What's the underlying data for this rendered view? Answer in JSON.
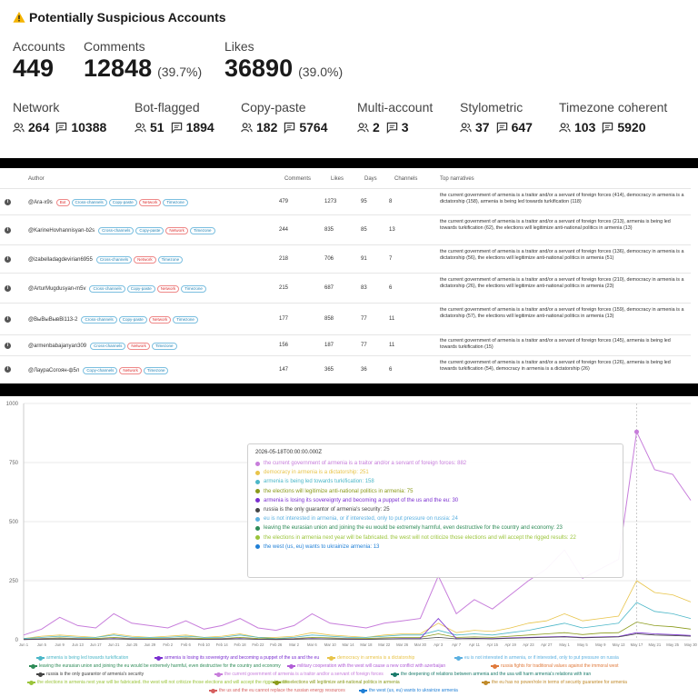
{
  "summary": {
    "title": "Potentially Suspicious Accounts",
    "accounts_label": "Accounts",
    "accounts_value": "449",
    "comments_label": "Comments",
    "comments_value": "12848",
    "comments_pct": "(39.7%)",
    "likes_label": "Likes",
    "likes_value": "36890",
    "likes_pct": "(39.0%)",
    "categories": [
      {
        "label": "Network",
        "accounts": "264",
        "comments": "10388"
      },
      {
        "label": "Bot-flagged",
        "accounts": "51",
        "comments": "1894"
      },
      {
        "label": "Copy-paste",
        "accounts": "182",
        "comments": "5764"
      },
      {
        "label": "Multi-account",
        "accounts": "2",
        "comments": "3"
      },
      {
        "label": "Stylometric",
        "accounts": "37",
        "comments": "647"
      },
      {
        "label": "Timezone coherent",
        "accounts": "103",
        "comments": "5920"
      }
    ],
    "colors": {
      "accent": "#1a1a1a",
      "warning": "#f5b400"
    }
  },
  "table": {
    "headers": {
      "author": "Author",
      "comments": "Comments",
      "likes": "Likes",
      "days": "Days",
      "channels": "Channels",
      "narratives": "Top narratives"
    },
    "rows": [
      {
        "author": "@Ara-x9s",
        "tags": [
          {
            "t": "Bot",
            "c": "red"
          },
          {
            "t": "Cross-channels",
            "c": "blue"
          },
          {
            "t": "Copy-paste",
            "c": "blue"
          },
          {
            "t": "Network",
            "c": "red"
          },
          {
            "t": "Timezone",
            "c": "blue"
          }
        ],
        "comments": "479",
        "likes": "1273",
        "days": "95",
        "channels": "8",
        "narratives": "the current government of armenia is a traitor and/or a servant of foreign forces (414), democracy in armenia is a dictatorship (158), armenia is being led towards turkification (118)"
      },
      {
        "author": "@KarineHovhannisyan-b2s",
        "tags": [
          {
            "t": "Cross-channels",
            "c": "blue"
          },
          {
            "t": "Copy-paste",
            "c": "blue"
          },
          {
            "t": "Network",
            "c": "red"
          },
          {
            "t": "Timezone",
            "c": "blue"
          }
        ],
        "comments": "244",
        "likes": "835",
        "days": "85",
        "channels": "13",
        "narratives": "the current government of armenia is a traitor and/or a servant of foreign forces (213), armenia is being led towards turkification (62), the elections will legitimize anti-national politics in armenia (13)"
      },
      {
        "author": "@izabelladagdevirian6955",
        "tags": [
          {
            "t": "Cross-channels",
            "c": "blue"
          },
          {
            "t": "Network",
            "c": "red"
          },
          {
            "t": "Timezone",
            "c": "blue"
          }
        ],
        "comments": "218",
        "likes": "706",
        "days": "91",
        "channels": "7",
        "narratives": "the current government of armenia is a traitor and/or a servant of foreign forces (136), democracy in armenia is a dictatorship (56), the elections will legitimize anti-national politics in armenia (51)"
      },
      {
        "author": "@ArturMugdusyan-m5v",
        "tags": [
          {
            "t": "Cross-channels",
            "c": "blue"
          },
          {
            "t": "Copy-paste",
            "c": "blue"
          },
          {
            "t": "Network",
            "c": "red"
          },
          {
            "t": "Timezone",
            "c": "blue"
          }
        ],
        "comments": "215",
        "likes": "687",
        "days": "83",
        "channels": "6",
        "narratives": "the current government of armenia is a traitor and/or a servant of foreign forces (210), democracy in armenia is a dictatorship (26), the elections will legitimize anti-national politics in armenia (23)"
      },
      {
        "author": "@ВыВыВывВі113-2",
        "tags": [
          {
            "t": "Cross-channels",
            "c": "blue"
          },
          {
            "t": "Copy-paste",
            "c": "blue"
          },
          {
            "t": "Network",
            "c": "red"
          },
          {
            "t": "Timezone",
            "c": "blue"
          }
        ],
        "comments": "177",
        "likes": "858",
        "days": "77",
        "channels": "11",
        "narratives": "the current government of armenia is a traitor and/or a servant of foreign forces (159), democracy in armenia is a dictatorship (57), the elections will legitimize anti-national politics in armenia (13)"
      },
      {
        "author": "@armenbabajanyan309",
        "tags": [
          {
            "t": "Cross-channels",
            "c": "blue"
          },
          {
            "t": "Network",
            "c": "red"
          },
          {
            "t": "Timezone",
            "c": "blue"
          }
        ],
        "comments": "156",
        "likes": "187",
        "days": "77",
        "channels": "11",
        "narratives": "the current government of armenia is a traitor and/or a servant of foreign forces (145), armenia is being led towards turkification (15)"
      },
      {
        "author": "@ЛаураСогоян-ф5л",
        "tags": [
          {
            "t": "Copy-channels",
            "c": "blue"
          },
          {
            "t": "Network",
            "c": "red"
          },
          {
            "t": "Timezone",
            "c": "blue"
          }
        ],
        "comments": "147",
        "likes": "365",
        "days": "36",
        "channels": "6",
        "narratives": "the current government of armenia is a traitor and/or a servant of foreign forces (126), armenia is being led towards turkification (54), democracy in armenia is a dictatorship (26)"
      }
    ]
  },
  "tooltip": {
    "timestamp": "2026-05-18T00:00:00.000Z",
    "items": [
      {
        "text": "the current government of armenia is a traitor and/or a servant of foreign forces: 882",
        "color": "#c77ddb"
      },
      {
        "text": "democracy in armenia is a dictatorship: 251",
        "color": "#e8c44a"
      },
      {
        "text": "armenia is being led towards turkification: 158",
        "color": "#4cb7c8"
      },
      {
        "text": "the elections will legitimize anti-national politics in armenia: 75",
        "color": "#8a9a1a"
      },
      {
        "text": "armenia is losing its sovereignty and becoming a puppet of the us and the eu: 30",
        "color": "#7a2fd0"
      },
      {
        "text": "russia is the only guarantor of armenia's security: 25",
        "color": "#444444"
      },
      {
        "text": "eu is not interested in armenia, or if interested, only to put pressure on russia: 24",
        "color": "#5bb0e0"
      },
      {
        "text": "leaving the eurasian union and joining the eu would be extremely harmful, even destructive for the country and economy: 23",
        "color": "#2e8b57"
      },
      {
        "text": "the elections in armenia next year will be fabricated. the west will not criticize those elections and will accept the rigged results: 22",
        "color": "#9ac43a"
      },
      {
        "text": "the west (us, eu) wants to ukrainize armenia: 13",
        "color": "#1f7fd6"
      }
    ]
  },
  "chart_data": {
    "type": "line",
    "ylim": [
      0,
      1000
    ],
    "yticks": [
      "0",
      "250",
      "500",
      "750",
      "1000"
    ],
    "x": [
      "Jun 1",
      "Jun 5",
      "Jun 9",
      "Jun 13",
      "Jun 17",
      "Jun 21",
      "Jun 25",
      "Jun 29",
      "Feb 2",
      "Feb 6",
      "Feb 10",
      "Feb 14",
      "Feb 18",
      "Feb 22",
      "Feb 26",
      "Mar 2",
      "Mar 6",
      "Mar 10",
      "Mar 14",
      "Mar 18",
      "Mar 22",
      "Mar 26",
      "Mar 30",
      "Apr 3",
      "Apr 7",
      "Apr 11",
      "Apr 15",
      "Apr 19",
      "Apr 23",
      "Apr 27",
      "May 1",
      "May 5",
      "May 9",
      "May 13",
      "May 17",
      "May 21",
      "May 25",
      "May 30"
    ],
    "series": [
      {
        "name": "the current government of armenia is a traitor and/or a servant of foreign forces",
        "color": "#c77ddb",
        "values": [
          20,
          45,
          95,
          60,
          50,
          110,
          70,
          60,
          50,
          80,
          45,
          60,
          90,
          50,
          40,
          60,
          110,
          70,
          60,
          50,
          70,
          80,
          90,
          270,
          110,
          170,
          130,
          190,
          250,
          300,
          380,
          260,
          300,
          340,
          880,
          720,
          700,
          590
        ]
      },
      {
        "name": "democracy in armenia is a dictatorship",
        "color": "#e8c44a",
        "values": [
          5,
          15,
          20,
          15,
          10,
          25,
          15,
          10,
          15,
          20,
          10,
          15,
          25,
          10,
          10,
          15,
          30,
          20,
          15,
          10,
          20,
          25,
          25,
          70,
          30,
          40,
          35,
          50,
          70,
          80,
          110,
          80,
          90,
          100,
          250,
          200,
          190,
          160
        ]
      },
      {
        "name": "armenia is being led towards turkification",
        "color": "#4cb7c8",
        "values": [
          5,
          10,
          15,
          10,
          10,
          20,
          10,
          10,
          10,
          15,
          10,
          10,
          20,
          10,
          5,
          10,
          20,
          15,
          10,
          10,
          15,
          20,
          20,
          40,
          20,
          25,
          20,
          30,
          40,
          55,
          70,
          50,
          60,
          70,
          158,
          120,
          110,
          90
        ]
      },
      {
        "name": "the elections will legitimize anti-national politics in armenia",
        "color": "#8a9a1a",
        "values": [
          2,
          5,
          8,
          5,
          5,
          10,
          5,
          5,
          5,
          8,
          5,
          5,
          10,
          5,
          3,
          5,
          10,
          8,
          5,
          5,
          8,
          10,
          10,
          25,
          10,
          12,
          10,
          15,
          20,
          25,
          30,
          22,
          28,
          30,
          75,
          60,
          55,
          45
        ]
      },
      {
        "name": "armenia is losing its sovereignty and becoming a puppet of the us and the eu",
        "color": "#7a2fd0",
        "values": [
          1,
          3,
          4,
          3,
          2,
          5,
          3,
          2,
          3,
          4,
          2,
          3,
          5,
          2,
          2,
          3,
          5,
          4,
          3,
          2,
          4,
          5,
          5,
          90,
          5,
          6,
          5,
          8,
          10,
          12,
          14,
          10,
          12,
          14,
          30,
          25,
          22,
          18
        ]
      },
      {
        "name": "russia is the only guarantor of armenia's security",
        "color": "#444444",
        "values": [
          1,
          2,
          3,
          2,
          2,
          4,
          2,
          2,
          2,
          3,
          2,
          2,
          4,
          2,
          1,
          2,
          4,
          3,
          2,
          2,
          3,
          4,
          4,
          10,
          4,
          5,
          4,
          6,
          8,
          10,
          12,
          8,
          10,
          12,
          25,
          20,
          18,
          15
        ]
      }
    ]
  },
  "legend": [
    {
      "text": "armenia is being led towards turkification",
      "color": "#4cb7c8"
    },
    {
      "text": "armenia is losing its sovereignty and becoming a puppet of the us and the eu",
      "color": "#7a2fd0"
    },
    {
      "text": "democracy in armenia is a dictatorship",
      "color": "#e8c44a"
    },
    {
      "text": "eu is not interested in armenia, or if interested, only to put pressure on russia",
      "color": "#5bb0e0"
    },
    {
      "text": "leaving the eurasian union and joining the eu would be extremely harmful, even destructive for the country and economy",
      "color": "#2e8b57"
    },
    {
      "text": "military cooperation with the west will cause a new conflict with azerbaijan",
      "color": "#b05cd6"
    },
    {
      "text": "russia fights for traditional values against the immoral west",
      "color": "#e07a3c"
    },
    {
      "text": "russia is the only guarantor of armenia's security",
      "color": "#444444"
    },
    {
      "text": "the current government of armenia is a traitor and/or a servant of foreign forces",
      "color": "#c77ddb"
    },
    {
      "text": "the deepening of relations between armenia and the usa will harm armenia's relations with iran",
      "color": "#1a7a6a"
    },
    {
      "text": "the elections in armenia next year will be fabricated. the west will not criticize those elections and will accept the rigged results",
      "color": "#9ac43a"
    },
    {
      "text": "the elections will legitimize anti-national politics in armenia",
      "color": "#8a9a1a"
    },
    {
      "text": "the eu has no power/role in terms of security guarantee for armenia",
      "color": "#c08a2a"
    },
    {
      "text": "the us and the eu cannot replace the russian energy resources",
      "color": "#d65f5f"
    },
    {
      "text": "the west (us, eu) wants to ukrainize armenia",
      "color": "#1f7fd6"
    }
  ]
}
